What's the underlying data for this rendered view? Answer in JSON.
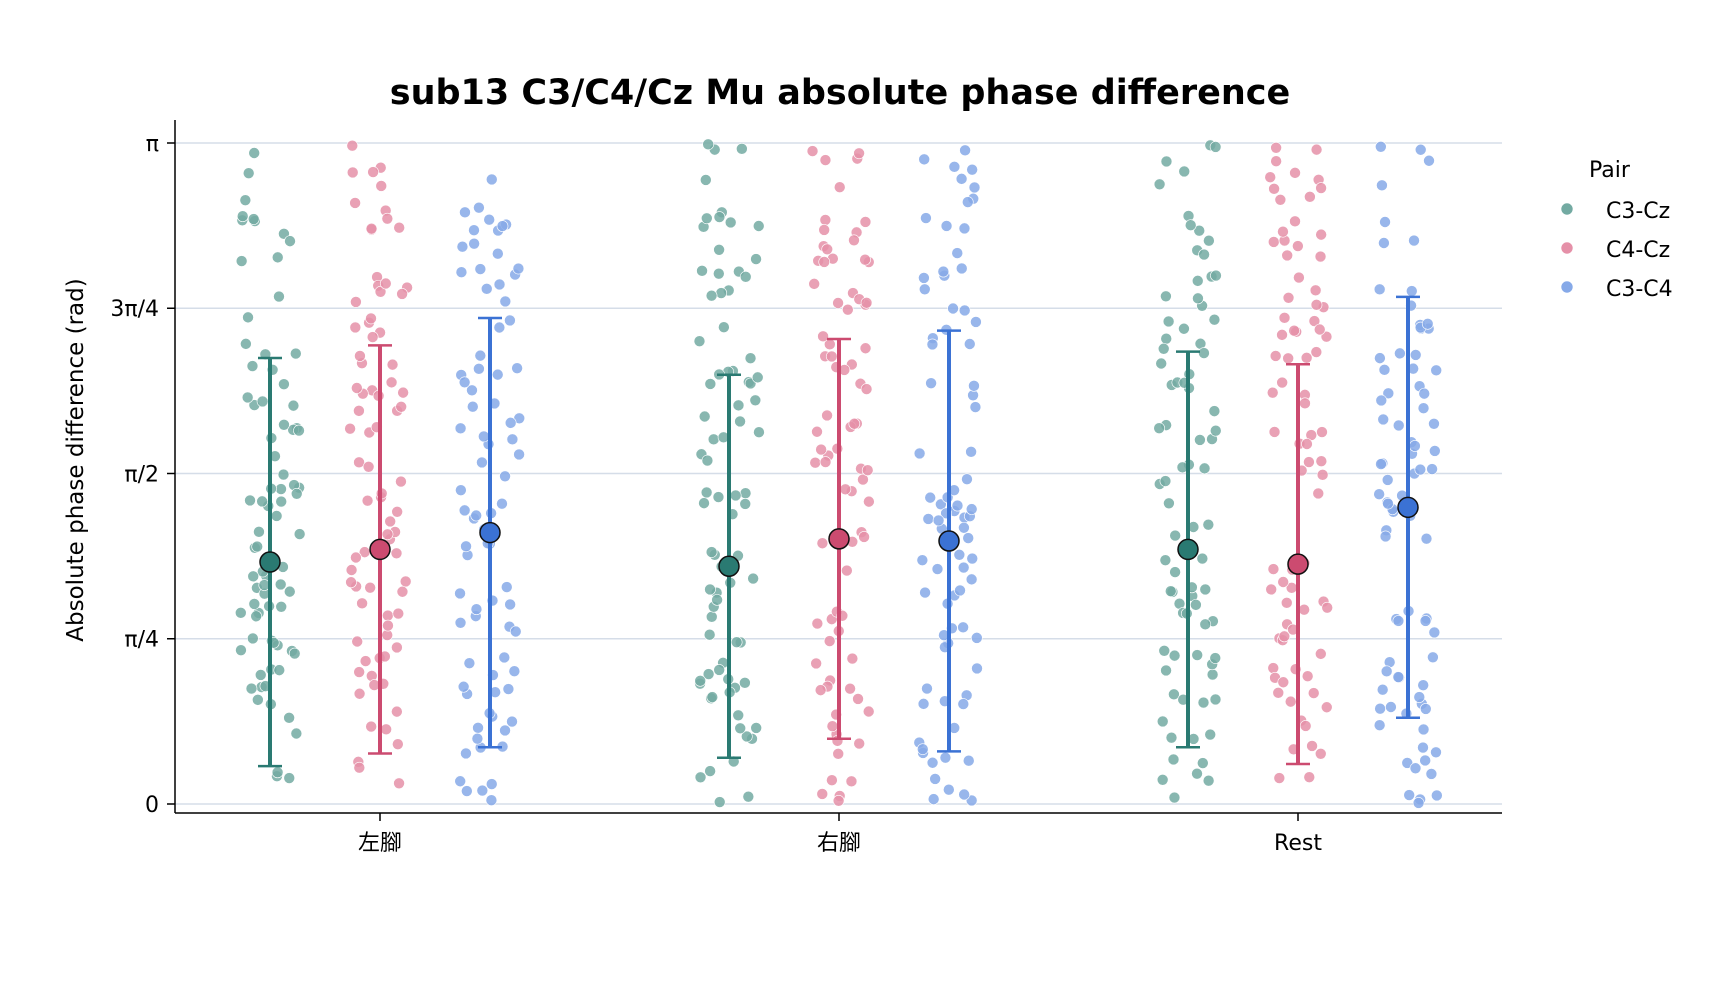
{
  "chart_data": {
    "type": "scatter",
    "title": "sub13 C3/C4/Cz Mu absolute phase difference",
    "xlabel": "",
    "ylabel": "Absolute phase difference (rad)",
    "ylim": [
      0,
      3.14159
    ],
    "yticks": [
      {
        "value": 0,
        "label": "0"
      },
      {
        "value": 0.7854,
        "label": "π/4"
      },
      {
        "value": 1.5708,
        "label": "π/2"
      },
      {
        "value": 2.3562,
        "label": "3π/4"
      },
      {
        "value": 3.14159,
        "label": "π"
      }
    ],
    "categories": [
      "左腳",
      "右腳",
      "Rest"
    ],
    "grid": "horizontal",
    "legend": {
      "title": "Pair",
      "placement": "right"
    },
    "series": [
      {
        "name": "C3-Cz",
        "color": "#2a7a72",
        "point_color": "#73aaa2",
        "mean": [
          1.15,
          1.13,
          1.21
        ],
        "sd": [
          0.97,
          0.91,
          0.94
        ]
      },
      {
        "name": "C4-Cz",
        "color": "#cc4b70",
        "point_color": "#e590a8",
        "mean": [
          1.21,
          1.26,
          1.14
        ],
        "sd": [
          0.97,
          0.95,
          0.95
        ]
      },
      {
        "name": "C3-C4",
        "color": "#3b72d4",
        "point_color": "#86a9e8",
        "mean": [
          1.29,
          1.25,
          1.41
        ],
        "sd": [
          1.02,
          1.0,
          1.0
        ]
      }
    ]
  }
}
